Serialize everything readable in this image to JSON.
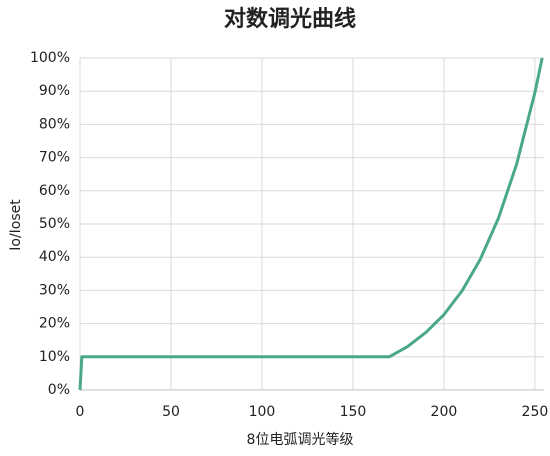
{
  "chart_data": {
    "type": "line",
    "title": "对数调光曲线",
    "xlabel": "8位电弧调光等级",
    "ylabel": "Io/Ioset",
    "x": [
      0,
      1,
      170,
      180,
      190,
      200,
      210,
      220,
      230,
      240,
      250,
      254
    ],
    "values": [
      0,
      10,
      10,
      13.1,
      17.3,
      22.7,
      29.9,
      39.4,
      51.8,
      68.1,
      89.6,
      100
    ],
    "color": "#4aa88a",
    "xlim": [
      0,
      255
    ],
    "xticks": [
      0,
      50,
      100,
      150,
      200,
      250
    ],
    "ylim": [
      0,
      100
    ],
    "yticks": [
      {
        "value": 0,
        "label": "0%"
      },
      {
        "value": 10,
        "label": "10%"
      },
      {
        "value": 20,
        "label": "20%"
      },
      {
        "value": 30,
        "label": "30%"
      },
      {
        "value": 40,
        "label": "40%"
      },
      {
        "value": 50,
        "label": "50%"
      },
      {
        "value": 60,
        "label": "60%"
      },
      {
        "value": 70,
        "label": "70%"
      },
      {
        "value": 80,
        "label": "80%"
      },
      {
        "value": 90,
        "label": "90%"
      },
      {
        "value": 100,
        "label": "100%"
      }
    ],
    "grid": true
  }
}
